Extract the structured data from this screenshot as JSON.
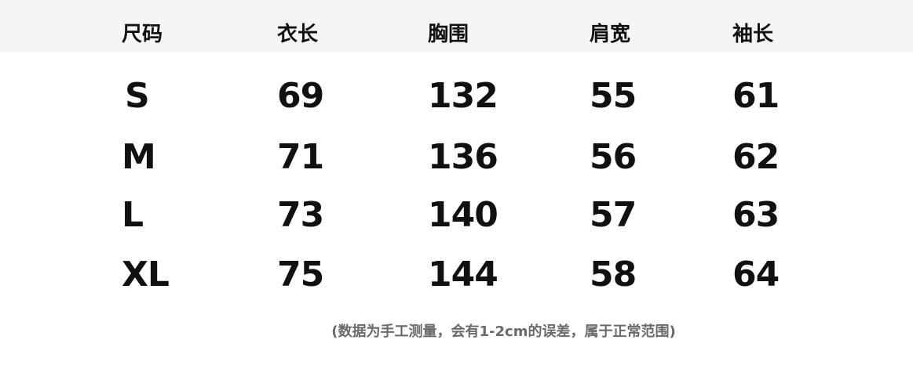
{
  "headers": [
    "尺码",
    "衣长",
    "胸围",
    "肩宽",
    "袖长"
  ],
  "rows": [
    [
      "S",
      "69",
      "132",
      "55",
      "61"
    ],
    [
      "M",
      "71",
      "136",
      "56",
      "62"
    ],
    [
      "L",
      "73",
      "140",
      "57",
      "63"
    ],
    [
      "XL",
      "75",
      "144",
      "58",
      "64"
    ]
  ],
  "note": "(数据为手工测量，会有1-2cm的误差，属于正常范围)",
  "colors": {
    "header_band": "#f5f5f5",
    "text": "#111111",
    "note": "#6a6a6a"
  }
}
